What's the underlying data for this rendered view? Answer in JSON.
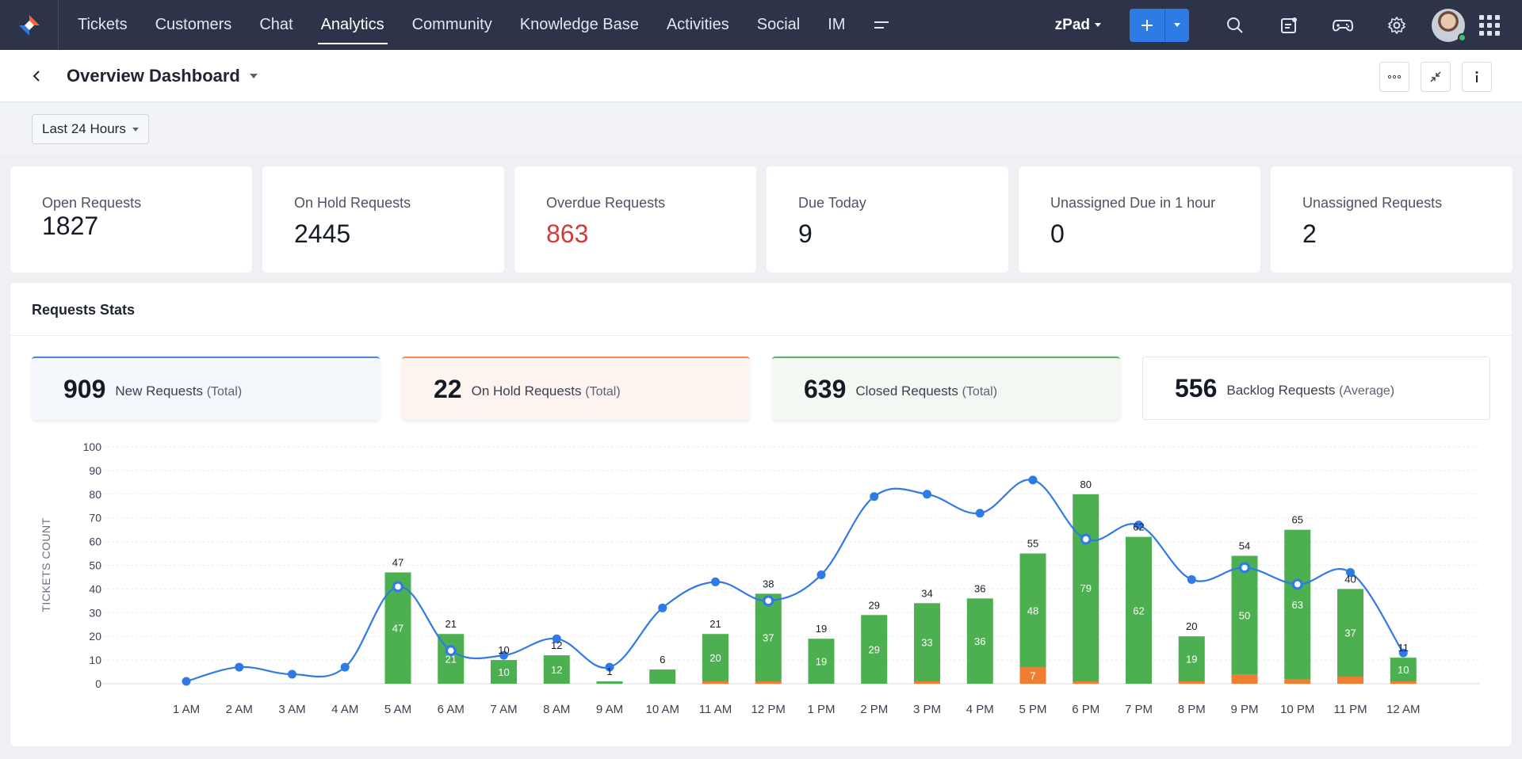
{
  "nav": {
    "items": [
      "Tickets",
      "Customers",
      "Chat",
      "Analytics",
      "Community",
      "Knowledge Base",
      "Activities",
      "Social",
      "IM"
    ],
    "active": "Analytics",
    "org_name": "zPad"
  },
  "header": {
    "title": "Overview Dashboard"
  },
  "filter": {
    "range": "Last 24 Hours"
  },
  "kpis": [
    {
      "label": "Open Requests",
      "value": "1827"
    },
    {
      "label": "On Hold Requests",
      "value": "2445"
    },
    {
      "label": "Overdue Requests",
      "value": "863",
      "color": "#d23b3b"
    },
    {
      "label": "Due Today",
      "value": "9"
    },
    {
      "label": "Unassigned Due in 1 hour",
      "value": "0"
    },
    {
      "label": "Unassigned Requests",
      "value": "2"
    }
  ],
  "stats": {
    "title": "Requests Stats",
    "cards": [
      {
        "value": "909",
        "label": "New Requests",
        "sub": "(Total)"
      },
      {
        "value": "22",
        "label": "On Hold Requests",
        "sub": "(Total)"
      },
      {
        "value": "639",
        "label": "Closed Requests",
        "sub": "(Total)"
      },
      {
        "value": "556",
        "label": "Backlog Requests",
        "sub": "(Average)"
      }
    ]
  },
  "colors": {
    "accent": "#2f7be5",
    "bar_green": "#4caf50",
    "bar_orange": "#ef7d32",
    "line_blue": "#2f7be5",
    "overdue_red": "#d23b3b"
  },
  "chart_data": {
    "type": "bar",
    "ylabel": "TICKETS COUNT",
    "ylim": [
      0,
      100
    ],
    "yticks": [
      0,
      10,
      20,
      30,
      40,
      50,
      60,
      70,
      80,
      90,
      100
    ],
    "categories": [
      "1 AM",
      "2 AM",
      "3 AM",
      "4 AM",
      "5 AM",
      "6 AM",
      "7 AM",
      "8 AM",
      "9 AM",
      "10 AM",
      "11 AM",
      "12 PM",
      "1 PM",
      "2 PM",
      "3 PM",
      "4 PM",
      "5 PM",
      "6 PM",
      "7 PM",
      "8 PM",
      "9 PM",
      "10 PM",
      "11 PM",
      "12 AM"
    ],
    "totals": [
      0,
      0,
      0,
      0,
      47,
      21,
      10,
      12,
      1,
      6,
      21,
      38,
      19,
      29,
      34,
      36,
      55,
      80,
      62,
      20,
      54,
      65,
      40,
      11
    ],
    "series": [
      {
        "values": [
          0,
          0,
          0,
          0,
          47,
          21,
          10,
          12,
          1,
          6,
          20,
          37,
          19,
          29,
          33,
          36,
          48,
          79,
          62,
          19,
          50,
          63,
          37,
          10
        ],
        "inner_labels": [
          "",
          "",
          "",
          "",
          "47",
          "21",
          "10",
          "12",
          "",
          "",
          "20",
          "37",
          "19",
          "29",
          "33",
          "36",
          "48",
          "79",
          "62",
          "19",
          "50",
          "63",
          "37",
          "10"
        ]
      },
      {
        "values": [
          0,
          0,
          0,
          0,
          0,
          0,
          0,
          0,
          0,
          0,
          1,
          1,
          0,
          0,
          1,
          0,
          7,
          1,
          0,
          1,
          4,
          2,
          3,
          1
        ],
        "inner_labels": [
          "",
          "",
          "",
          "",
          "",
          "",
          "",
          "",
          "",
          "",
          "",
          "",
          "",
          "",
          "",
          "",
          "7",
          "",
          "",
          "",
          "",
          "",
          "",
          ""
        ]
      },
      {
        "values": [
          1,
          7,
          4,
          7,
          41,
          14,
          12,
          19,
          7,
          32,
          43,
          35,
          46,
          79,
          80,
          72,
          86,
          61,
          67,
          44,
          49,
          42,
          47,
          13
        ],
        "hollow_points": [
          4,
          5,
          11,
          17,
          20,
          21
        ]
      }
    ]
  }
}
